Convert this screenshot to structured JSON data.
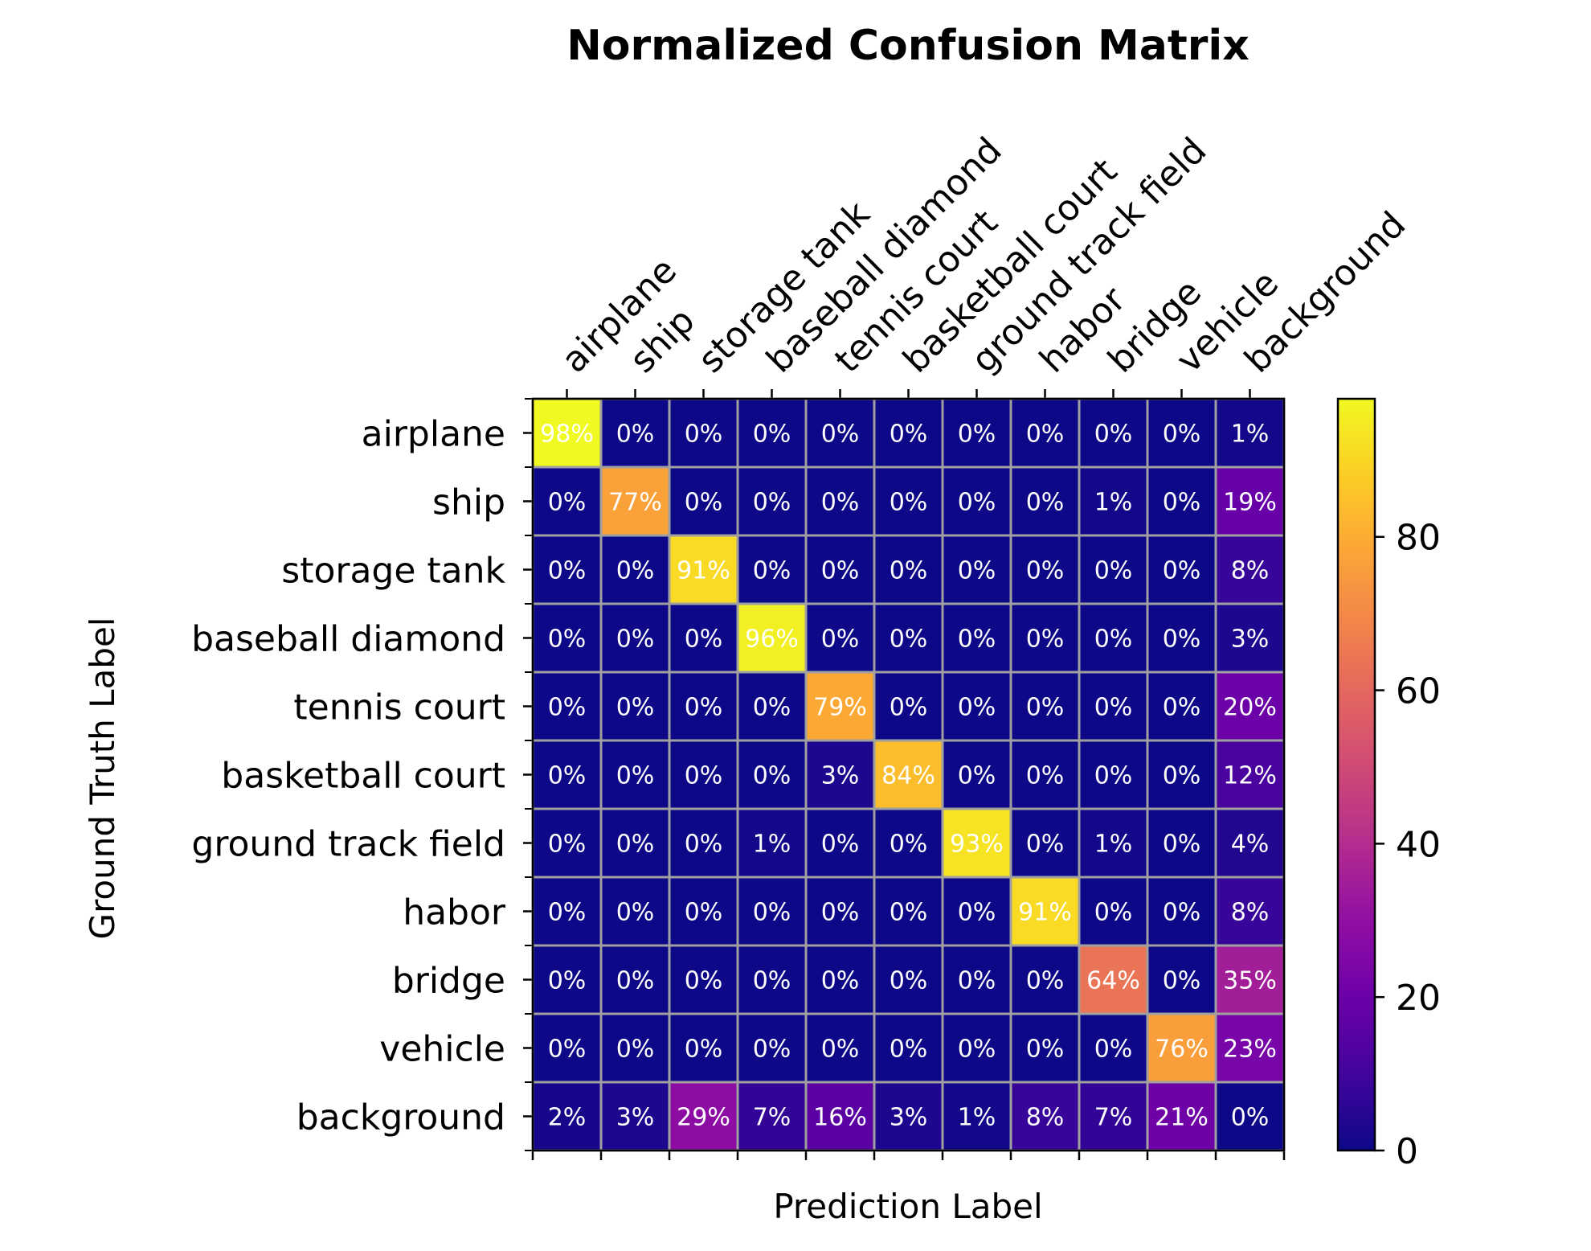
{
  "chart_data": {
    "type": "heatmap",
    "title": "Normalized Confusion Matrix",
    "xlabel": "Prediction Label",
    "ylabel": "Ground Truth Label",
    "x_categories": [
      "airplane",
      "ship",
      "storage tank",
      "baseball diamond",
      "tennis court",
      "basketball court",
      "ground track field",
      "habor",
      "bridge",
      "vehicle",
      "background"
    ],
    "y_categories": [
      "airplane",
      "ship",
      "storage tank",
      "baseball diamond",
      "tennis court",
      "basketball court",
      "ground track field",
      "habor",
      "bridge",
      "vehicle",
      "background"
    ],
    "values": [
      [
        98,
        0,
        0,
        0,
        0,
        0,
        0,
        0,
        0,
        0,
        1
      ],
      [
        0,
        77,
        0,
        0,
        0,
        0,
        0,
        0,
        1,
        0,
        19
      ],
      [
        0,
        0,
        91,
        0,
        0,
        0,
        0,
        0,
        0,
        0,
        8
      ],
      [
        0,
        0,
        0,
        96,
        0,
        0,
        0,
        0,
        0,
        0,
        3
      ],
      [
        0,
        0,
        0,
        0,
        79,
        0,
        0,
        0,
        0,
        0,
        20
      ],
      [
        0,
        0,
        0,
        0,
        3,
        84,
        0,
        0,
        0,
        0,
        12
      ],
      [
        0,
        0,
        0,
        1,
        0,
        0,
        93,
        0,
        1,
        0,
        4
      ],
      [
        0,
        0,
        0,
        0,
        0,
        0,
        0,
        91,
        0,
        0,
        8
      ],
      [
        0,
        0,
        0,
        0,
        0,
        0,
        0,
        0,
        64,
        0,
        35
      ],
      [
        0,
        0,
        0,
        0,
        0,
        0,
        0,
        0,
        0,
        76,
        23
      ],
      [
        2,
        3,
        29,
        7,
        16,
        3,
        1,
        8,
        7,
        21,
        0
      ]
    ],
    "value_suffix": "%",
    "colormap": "plasma",
    "colorbar": {
      "range": [
        0,
        98
      ],
      "ticks": [
        0,
        20,
        40,
        60,
        80
      ]
    },
    "grid_color": "#a0a0a0",
    "x_tick_position": "top",
    "x_tick_rotation": -45,
    "grid": true
  }
}
